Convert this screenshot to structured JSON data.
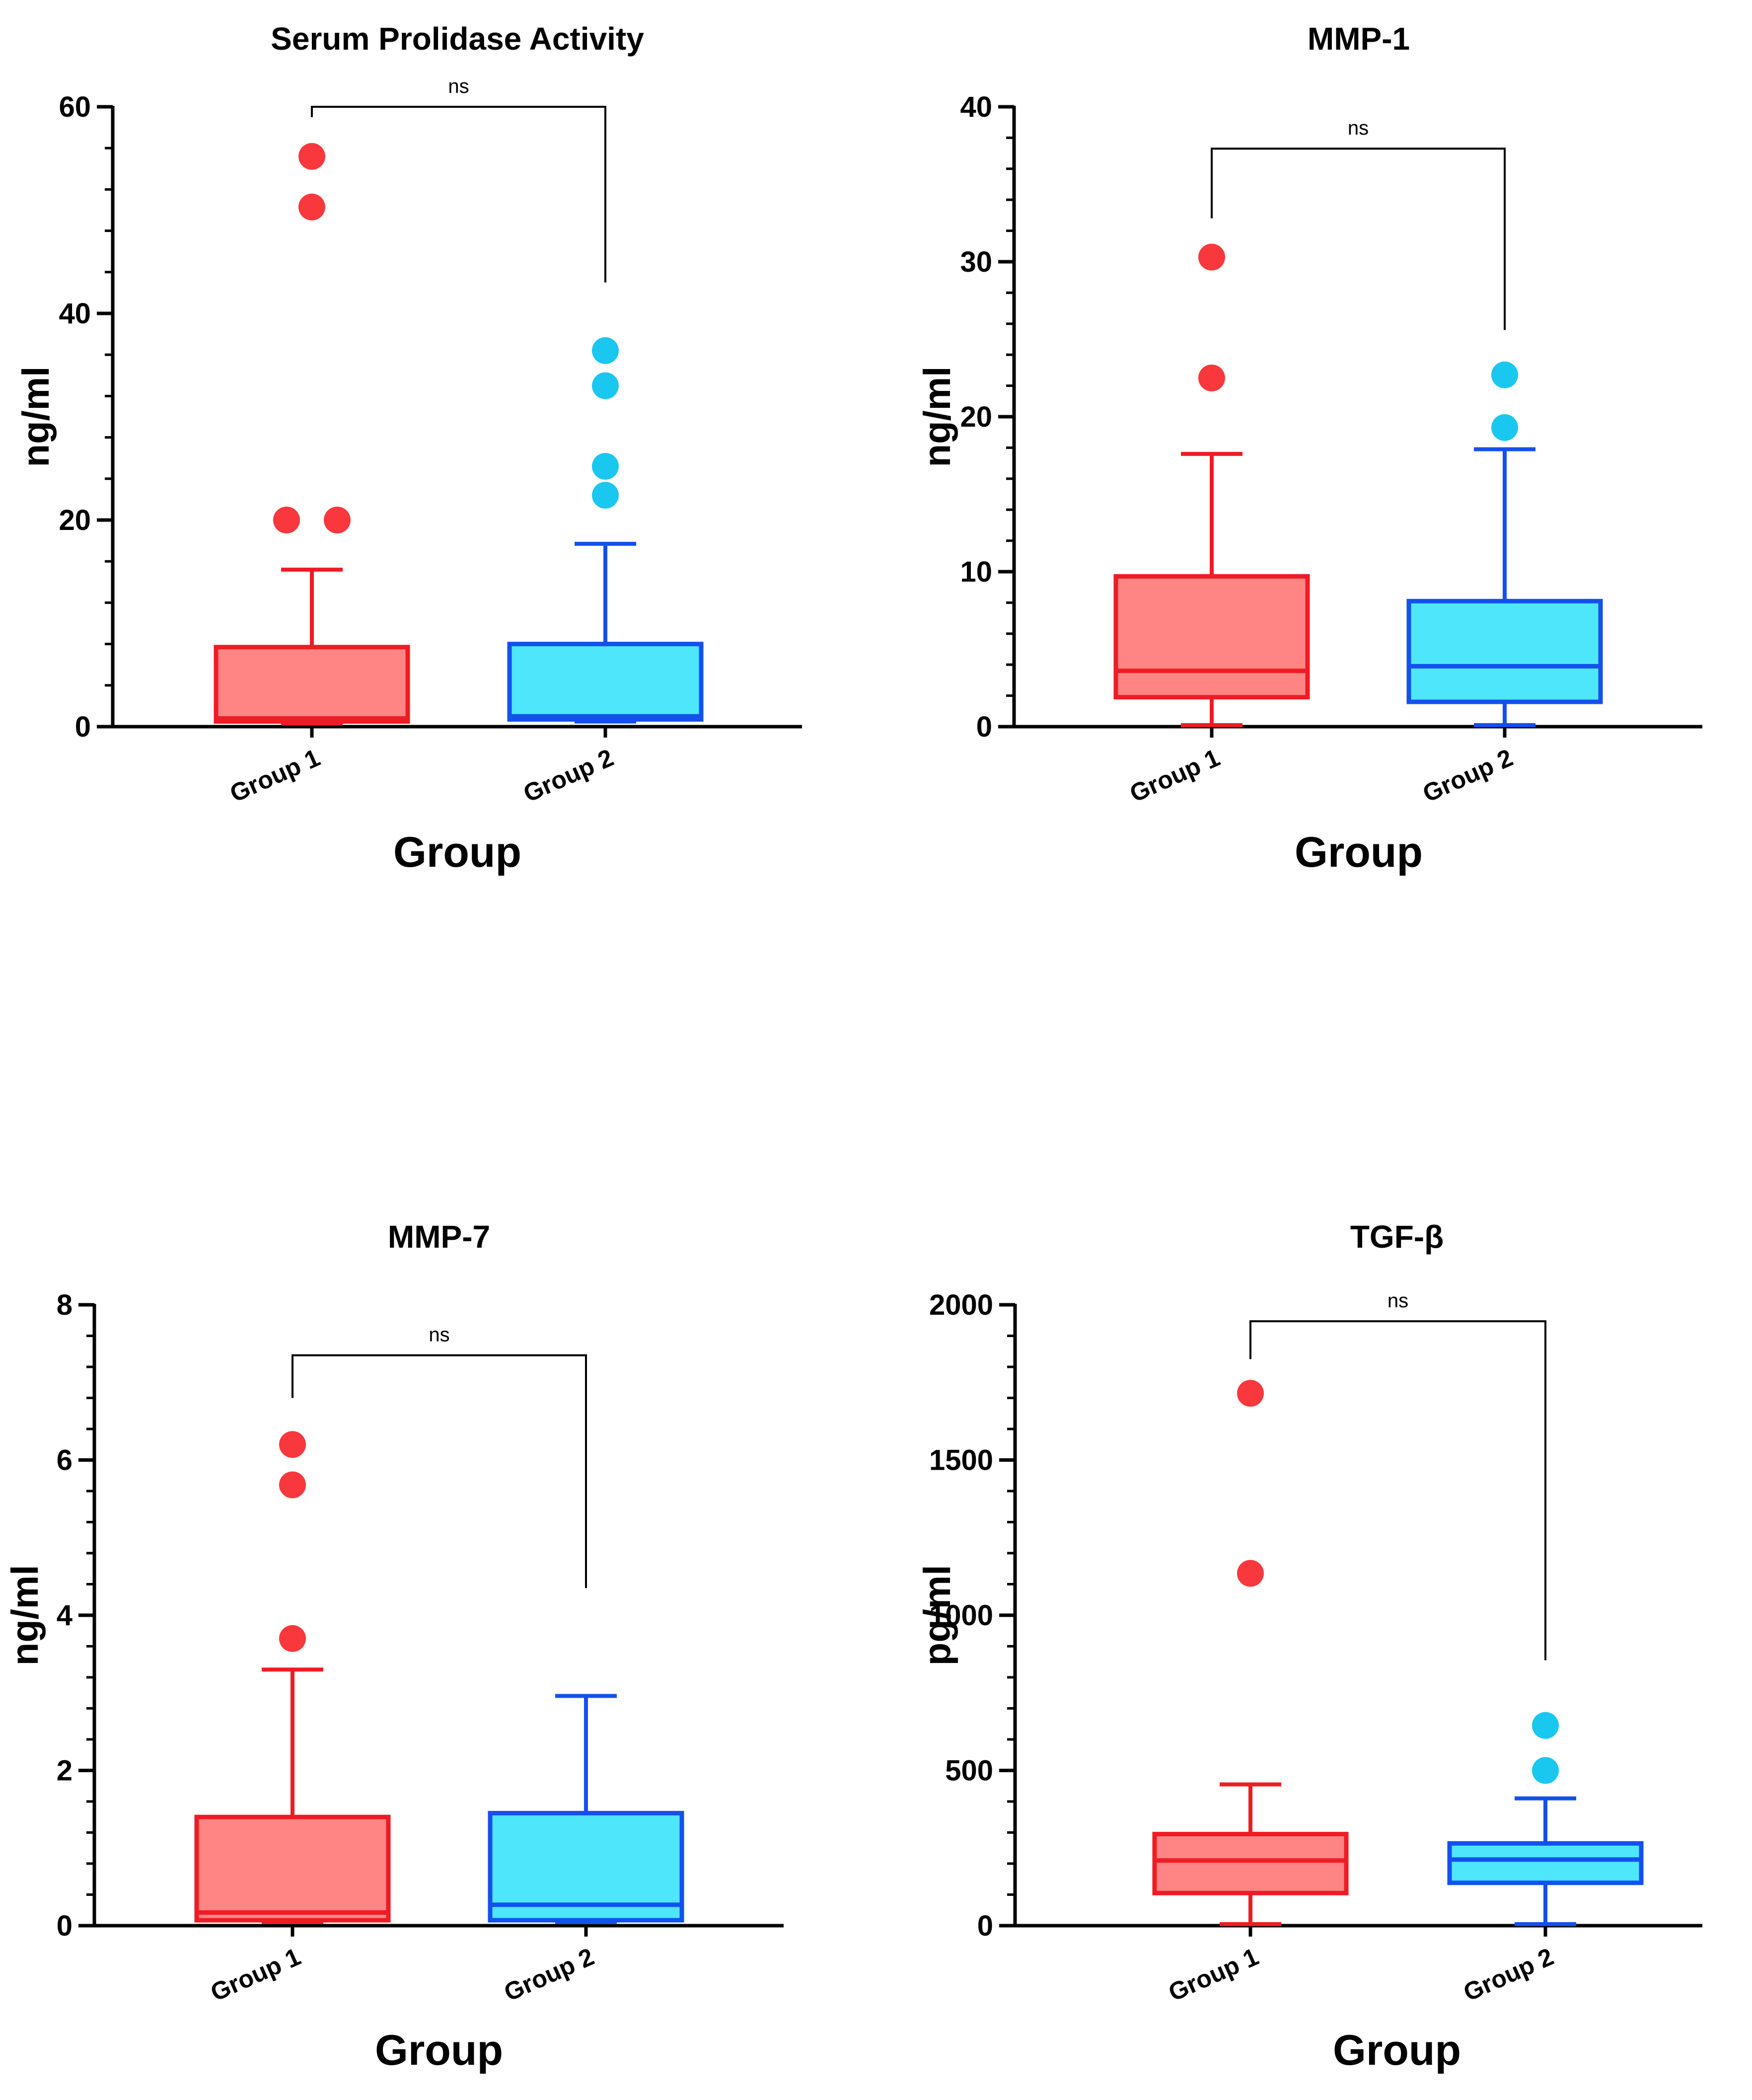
{
  "colors": {
    "group1_fill": "#ff8585",
    "group1_stroke": "#ee1c25",
    "group1_point": "#f8383c",
    "group2_fill": "#4ee6fb",
    "group2_stroke": "#1350ed",
    "group2_point": "#1ac7ef",
    "axis": "#000000"
  },
  "chart_data": [
    {
      "type": "box",
      "title": "Serum Prolidase Activity",
      "xlabel": "Group",
      "ylabel": "ng/ml",
      "categories": [
        "Group 1",
        "Group 2"
      ],
      "ylim": [
        0,
        60
      ],
      "yticks": [
        0,
        20,
        40,
        60
      ],
      "grid": false,
      "legend": "none",
      "significance": {
        "label": "ns",
        "left_tip": 59,
        "right_tip": 43,
        "bar": 60
      },
      "series": [
        {
          "whisker_low": 0.3,
          "q1": 0.5,
          "median": 0.8,
          "q3": 7.7,
          "whisker_high": 15.2,
          "outliers": [
            55.2,
            50.3,
            20.0,
            20.0
          ]
        },
        {
          "whisker_low": 0.5,
          "q1": 0.7,
          "median": 1.0,
          "q3": 8.0,
          "whisker_high": 17.7,
          "outliers": [
            36.4,
            33.0,
            25.2,
            22.4
          ]
        }
      ]
    },
    {
      "type": "box",
      "title": "MMP-1",
      "xlabel": "Group",
      "ylabel": "ng/ml",
      "categories": [
        "Group 1",
        "Group 2"
      ],
      "ylim": [
        0,
        40
      ],
      "yticks": [
        0,
        10,
        20,
        30,
        40
      ],
      "grid": false,
      "legend": "none",
      "significance": {
        "label": "ns",
        "left_tip": 32.8,
        "right_tip": 25.6,
        "bar": 37.3
      },
      "series": [
        {
          "whisker_low": 0.1,
          "q1": 1.9,
          "median": 3.6,
          "q3": 9.7,
          "whisker_high": 17.6,
          "outliers": [
            30.3,
            22.5
          ]
        },
        {
          "whisker_low": 0.1,
          "q1": 1.6,
          "median": 3.9,
          "q3": 8.1,
          "whisker_high": 17.9,
          "outliers": [
            22.7,
            19.3
          ]
        }
      ]
    },
    {
      "type": "box",
      "title": "MMP-7",
      "xlabel": "Group",
      "ylabel": "ng/ml",
      "categories": [
        "Group 1",
        "Group 2"
      ],
      "ylim": [
        0,
        8
      ],
      "yticks": [
        0,
        2,
        4,
        6,
        8
      ],
      "grid": false,
      "legend": "none",
      "significance": {
        "label": "ns",
        "left_tip": 6.8,
        "right_tip": 4.35,
        "bar": 7.35
      },
      "series": [
        {
          "whisker_low": 0.05,
          "q1": 0.07,
          "median": 0.17,
          "q3": 1.4,
          "whisker_high": 3.3,
          "outliers": [
            6.2,
            5.68,
            3.7
          ]
        },
        {
          "whisker_low": 0.05,
          "q1": 0.07,
          "median": 0.27,
          "q3": 1.45,
          "whisker_high": 2.96,
          "outliers": []
        }
      ]
    },
    {
      "type": "box",
      "title": "TGF-β",
      "xlabel": "Group",
      "ylabel": "pg/ml",
      "categories": [
        "Group 1",
        "Group 2"
      ],
      "ylim": [
        0,
        2000
      ],
      "yticks": [
        0,
        500,
        1000,
        1500,
        2000
      ],
      "grid": false,
      "legend": "none",
      "significance": {
        "label": "ns",
        "left_tip": 1825,
        "right_tip": 855,
        "bar": 1947
      },
      "series": [
        {
          "whisker_low": 5,
          "q1": 105,
          "median": 210,
          "q3": 295,
          "whisker_high": 455,
          "outliers": [
            1715,
            1135
          ]
        },
        {
          "whisker_low": 5,
          "q1": 138,
          "median": 213,
          "q3": 265,
          "whisker_high": 410,
          "outliers": [
            645,
            500
          ]
        }
      ]
    }
  ]
}
